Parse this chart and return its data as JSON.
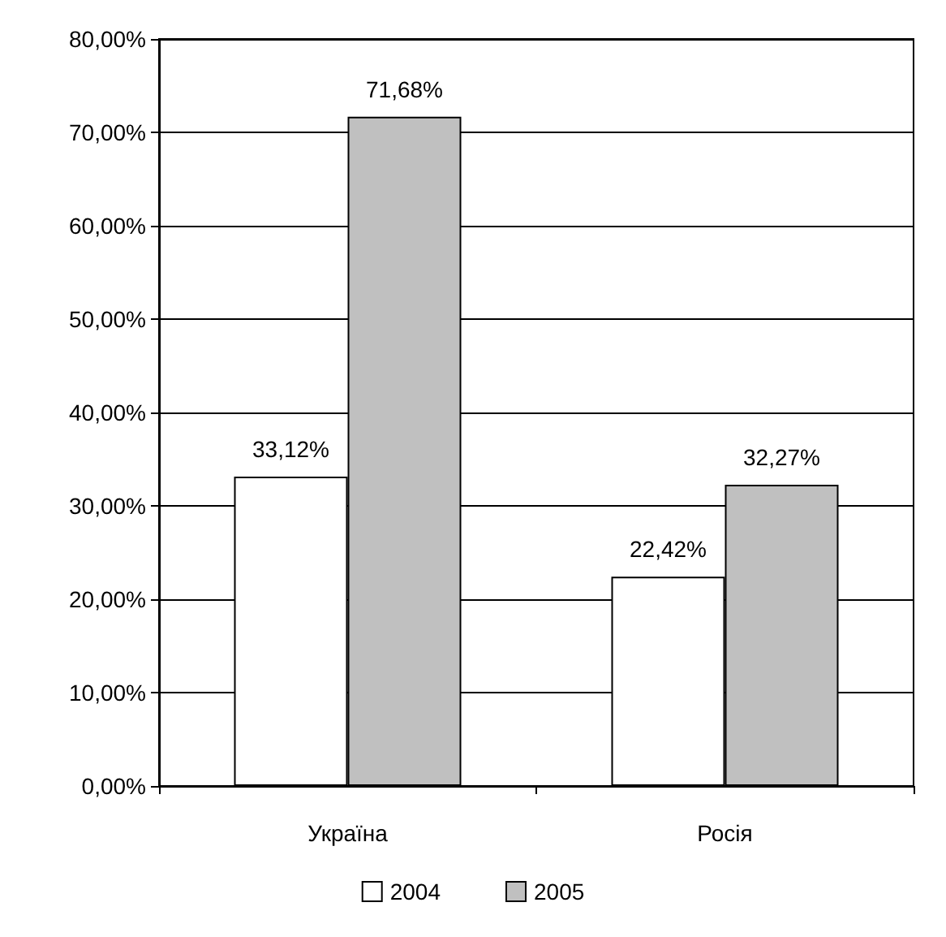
{
  "chart_data": {
    "type": "bar",
    "categories": [
      "Україна",
      "Росія"
    ],
    "series": [
      {
        "name": "2004",
        "color": "#ffffff",
        "values": [
          33.12,
          22.42
        ],
        "value_labels": [
          "33,12%",
          "22,42%"
        ]
      },
      {
        "name": "2005",
        "color": "#c0c0c0",
        "values": [
          71.68,
          32.27
        ],
        "value_labels": [
          "71,68%",
          "32,27%"
        ]
      }
    ],
    "ylim": [
      0,
      80
    ],
    "yticks": [
      {
        "value": 0,
        "label": "0,00%"
      },
      {
        "value": 10,
        "label": "10,00%"
      },
      {
        "value": 20,
        "label": "20,00%"
      },
      {
        "value": 30,
        "label": "30,00%"
      },
      {
        "value": 40,
        "label": "40,00%"
      },
      {
        "value": 50,
        "label": "50,00%"
      },
      {
        "value": 60,
        "label": "60,00%"
      },
      {
        "value": 70,
        "label": "70,00%"
      },
      {
        "value": 80,
        "label": "80,00%"
      }
    ],
    "grid": "y",
    "legend": "bottom"
  }
}
